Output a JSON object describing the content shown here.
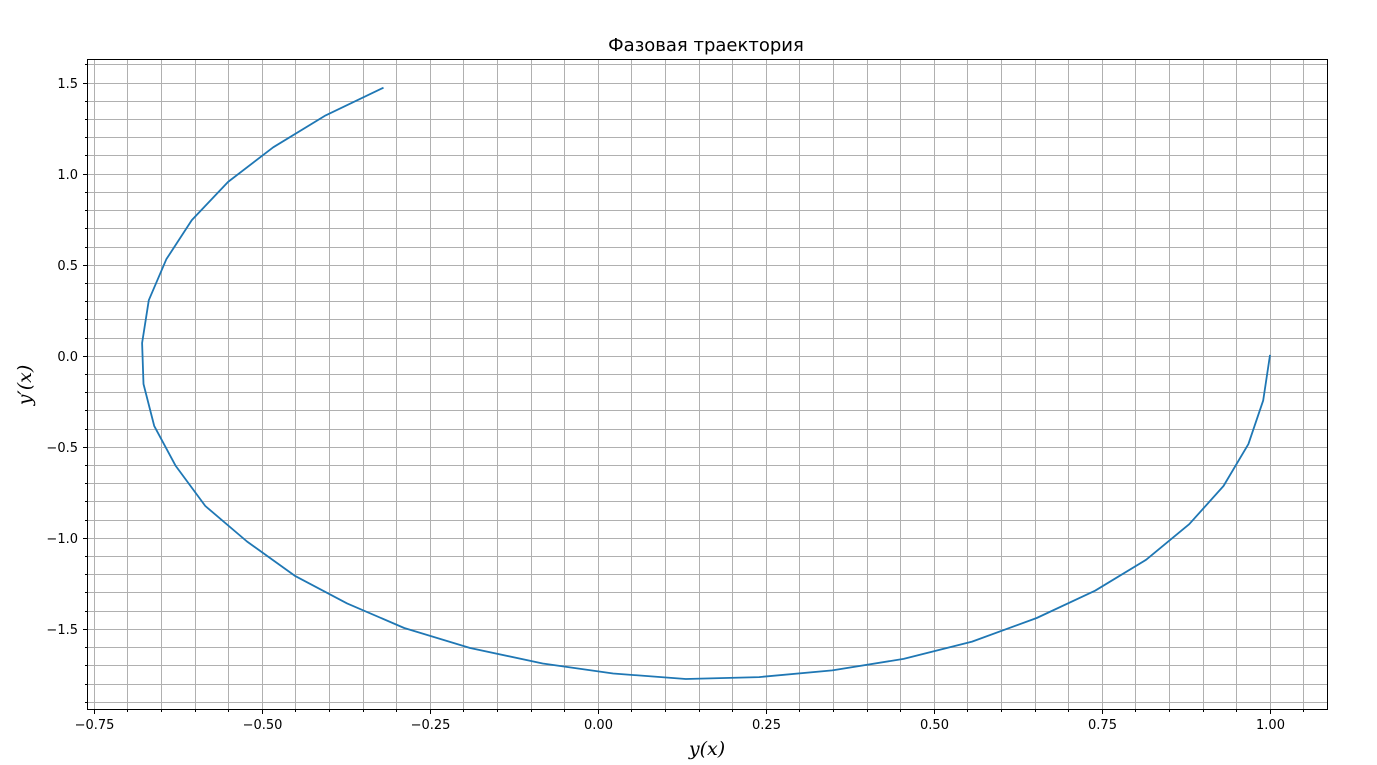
{
  "chart_data": {
    "type": "line",
    "title": "Фазовая траектория",
    "xlabel": "y(x)",
    "ylabel": "y′(x)",
    "xlim": [
      -0.76,
      1.085
    ],
    "ylim": [
      -1.94,
      1.63
    ],
    "x_ticks": [
      -0.75,
      -0.5,
      -0.25,
      0.0,
      0.25,
      0.5,
      0.75,
      1.0
    ],
    "x_tick_labels": [
      "−0.75",
      "−0.50",
      "−0.25",
      "0.00",
      "0.25",
      "0.50",
      "0.75",
      "1.00"
    ],
    "y_ticks": [
      -1.5,
      -1.0,
      -0.5,
      0.0,
      0.5,
      1.0,
      1.5
    ],
    "y_tick_labels": [
      "−1.5",
      "−1.0",
      "−0.5",
      "0.0",
      "0.5",
      "1.0",
      "1.5"
    ],
    "x_minor_step": 0.05,
    "y_minor_step": 0.1,
    "grid": true,
    "minor_grid": true,
    "series": [
      {
        "color": "#1f77b4",
        "points": [
          [
            1.0,
            0.0
          ],
          [
            0.99,
            -0.245
          ],
          [
            0.968,
            -0.485
          ],
          [
            0.931,
            -0.715
          ],
          [
            0.88,
            -0.925
          ],
          [
            0.816,
            -1.12
          ],
          [
            0.74,
            -1.29
          ],
          [
            0.653,
            -1.44
          ],
          [
            0.557,
            -1.57
          ],
          [
            0.455,
            -1.665
          ],
          [
            0.349,
            -1.728
          ],
          [
            0.24,
            -1.765
          ],
          [
            0.131,
            -1.775
          ],
          [
            0.023,
            -1.745
          ],
          [
            -0.082,
            -1.69
          ],
          [
            -0.19,
            -1.605
          ],
          [
            -0.288,
            -1.495
          ],
          [
            -0.373,
            -1.36
          ],
          [
            -0.45,
            -1.21
          ],
          [
            -0.522,
            -1.02
          ],
          [
            -0.584,
            -0.825
          ],
          [
            -0.628,
            -0.605
          ],
          [
            -0.66,
            -0.385
          ],
          [
            -0.676,
            -0.155
          ],
          [
            -0.678,
            0.07
          ],
          [
            -0.668,
            0.305
          ],
          [
            -0.642,
            0.53
          ],
          [
            -0.604,
            0.745
          ],
          [
            -0.55,
            0.955
          ],
          [
            -0.483,
            1.145
          ],
          [
            -0.405,
            1.32
          ],
          [
            -0.32,
            1.47
          ]
        ]
      }
    ]
  }
}
